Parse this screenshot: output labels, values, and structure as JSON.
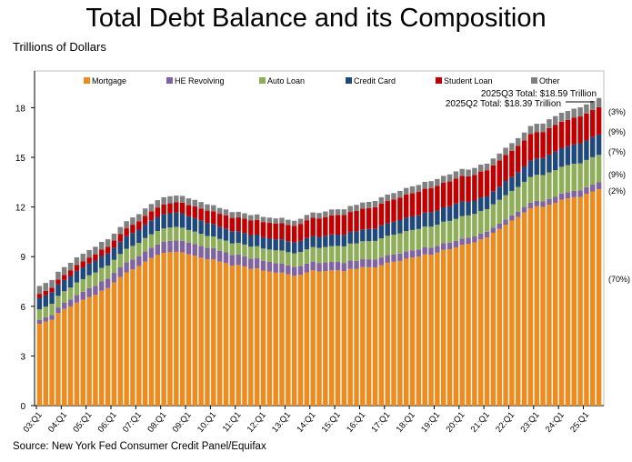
{
  "title": "Total Debt Balance and its Composition",
  "source": "Source: New York Fed Consumer Credit Panel/Equifax",
  "chart_data": {
    "type": "bar",
    "stacked": true,
    "title": "Total Debt Balance and its Composition",
    "ylabel": "Trillions of Dollars",
    "xlabel": "",
    "ylim": [
      0,
      20
    ],
    "yticks": [
      0,
      3,
      6,
      9,
      12,
      15,
      18
    ],
    "grid": false,
    "legend_position": "top",
    "start_year": 2003,
    "xtick_labels": [
      "03:Q1",
      "04:Q1",
      "05:Q1",
      "06:Q1",
      "07:Q1",
      "08:Q1",
      "09:Q1",
      "10:Q1",
      "11:Q1",
      "12:Q1",
      "13:Q1",
      "14:Q1",
      "15:Q1",
      "16:Q1",
      "17:Q1",
      "18:Q1",
      "19:Q1",
      "20:Q1",
      "21:Q1",
      "22:Q1",
      "23:Q1",
      "24:Q1",
      "25:Q1"
    ],
    "annotations": [
      "2025Q3 Total: $18.59 Trillion",
      "2025Q2 Total: $18.39 Trillion"
    ],
    "series": [
      {
        "name": "Mortgage",
        "color": "#ED8B1F",
        "share": "(70%)",
        "values": [
          4.94,
          5.08,
          5.18,
          5.6,
          5.84,
          5.99,
          6.22,
          6.39,
          6.56,
          6.69,
          6.94,
          7.1,
          7.44,
          7.76,
          8.05,
          8.23,
          8.43,
          8.7,
          8.91,
          9.1,
          9.23,
          9.27,
          9.29,
          9.26,
          9.14,
          9.06,
          8.94,
          8.84,
          8.83,
          8.7,
          8.61,
          8.45,
          8.5,
          8.4,
          8.27,
          8.29,
          8.16,
          8.1,
          8.03,
          8.03,
          7.93,
          7.84,
          7.9,
          8.05,
          8.17,
          8.1,
          8.13,
          8.17,
          8.17,
          8.12,
          8.26,
          8.25,
          8.37,
          8.36,
          8.35,
          8.48,
          8.63,
          8.69,
          8.74,
          8.88,
          8.94,
          9.0,
          9.14,
          9.12,
          9.24,
          9.41,
          9.44,
          9.56,
          9.71,
          9.78,
          9.86,
          10.04,
          10.16,
          10.44,
          10.67,
          10.93,
          11.18,
          11.39,
          11.67,
          11.92,
          12.04,
          12.01,
          12.14,
          12.25,
          12.44,
          12.52,
          12.59,
          12.61,
          12.8,
          12.94,
          13.07
        ]
      },
      {
        "name": "HE Revolving",
        "color": "#8064A2",
        "share": "(2%)",
        "values": [
          0.24,
          0.26,
          0.29,
          0.33,
          0.37,
          0.42,
          0.46,
          0.49,
          0.53,
          0.55,
          0.56,
          0.57,
          0.58,
          0.59,
          0.6,
          0.6,
          0.6,
          0.61,
          0.62,
          0.63,
          0.66,
          0.68,
          0.69,
          0.7,
          0.71,
          0.71,
          0.7,
          0.69,
          0.68,
          0.66,
          0.65,
          0.64,
          0.63,
          0.62,
          0.61,
          0.61,
          0.59,
          0.58,
          0.58,
          0.56,
          0.55,
          0.55,
          0.54,
          0.53,
          0.53,
          0.52,
          0.52,
          0.51,
          0.51,
          0.5,
          0.5,
          0.49,
          0.49,
          0.48,
          0.47,
          0.47,
          0.46,
          0.45,
          0.45,
          0.44,
          0.44,
          0.43,
          0.42,
          0.42,
          0.41,
          0.4,
          0.4,
          0.39,
          0.39,
          0.37,
          0.36,
          0.35,
          0.34,
          0.32,
          0.32,
          0.32,
          0.32,
          0.32,
          0.33,
          0.34,
          0.34,
          0.34,
          0.35,
          0.36,
          0.37,
          0.38,
          0.38,
          0.39,
          0.4,
          0.41,
          0.42
        ]
      },
      {
        "name": "Auto Loan",
        "color": "#8FAE5A",
        "share": "(9%)",
        "values": [
          0.64,
          0.64,
          0.68,
          0.7,
          0.7,
          0.72,
          0.76,
          0.76,
          0.78,
          0.8,
          0.82,
          0.79,
          0.79,
          0.81,
          0.82,
          0.82,
          0.8,
          0.81,
          0.82,
          0.82,
          0.81,
          0.81,
          0.82,
          0.79,
          0.76,
          0.74,
          0.74,
          0.72,
          0.71,
          0.71,
          0.71,
          0.71,
          0.7,
          0.71,
          0.72,
          0.73,
          0.74,
          0.75,
          0.77,
          0.78,
          0.79,
          0.81,
          0.84,
          0.86,
          0.88,
          0.9,
          0.93,
          0.96,
          0.97,
          1.0,
          1.03,
          1.06,
          1.07,
          1.1,
          1.13,
          1.16,
          1.17,
          1.19,
          1.21,
          1.22,
          1.23,
          1.24,
          1.26,
          1.27,
          1.28,
          1.3,
          1.32,
          1.33,
          1.35,
          1.34,
          1.36,
          1.37,
          1.37,
          1.4,
          1.44,
          1.46,
          1.47,
          1.5,
          1.52,
          1.55,
          1.56,
          1.58,
          1.6,
          1.61,
          1.62,
          1.63,
          1.64,
          1.64,
          1.64,
          1.66,
          1.66
        ]
      },
      {
        "name": "Credit Card",
        "color": "#1F497D",
        "share": "(7%)",
        "values": [
          0.69,
          0.69,
          0.7,
          0.7,
          0.68,
          0.7,
          0.7,
          0.71,
          0.71,
          0.72,
          0.72,
          0.73,
          0.73,
          0.74,
          0.76,
          0.78,
          0.8,
          0.82,
          0.84,
          0.85,
          0.86,
          0.86,
          0.87,
          0.87,
          0.84,
          0.83,
          0.81,
          0.79,
          0.76,
          0.74,
          0.73,
          0.73,
          0.7,
          0.7,
          0.7,
          0.7,
          0.68,
          0.68,
          0.67,
          0.68,
          0.66,
          0.67,
          0.67,
          0.68,
          0.66,
          0.67,
          0.68,
          0.7,
          0.68,
          0.7,
          0.71,
          0.73,
          0.71,
          0.73,
          0.75,
          0.78,
          0.76,
          0.78,
          0.81,
          0.83,
          0.82,
          0.83,
          0.84,
          0.87,
          0.85,
          0.87,
          0.88,
          0.93,
          0.89,
          0.82,
          0.81,
          0.82,
          0.77,
          0.79,
          0.8,
          0.86,
          0.84,
          0.89,
          0.93,
          0.99,
          0.99,
          1.03,
          1.08,
          1.13,
          1.12,
          1.14,
          1.17,
          1.21,
          1.18,
          1.21,
          1.23
        ]
      },
      {
        "name": "Student Loan",
        "color": "#C00000",
        "share": "(9%)",
        "values": [
          0.24,
          0.26,
          0.27,
          0.29,
          0.31,
          0.33,
          0.35,
          0.36,
          0.37,
          0.38,
          0.39,
          0.4,
          0.43,
          0.46,
          0.48,
          0.5,
          0.51,
          0.53,
          0.55,
          0.57,
          0.59,
          0.6,
          0.61,
          0.64,
          0.66,
          0.69,
          0.72,
          0.74,
          0.76,
          0.78,
          0.8,
          0.81,
          0.84,
          0.86,
          0.88,
          0.89,
          0.92,
          0.93,
          0.94,
          0.97,
          0.99,
          0.99,
          1.03,
          1.08,
          1.11,
          1.12,
          1.13,
          1.16,
          1.19,
          1.19,
          1.2,
          1.23,
          1.26,
          1.26,
          1.28,
          1.31,
          1.34,
          1.34,
          1.36,
          1.38,
          1.41,
          1.41,
          1.44,
          1.46,
          1.49,
          1.48,
          1.5,
          1.51,
          1.54,
          1.54,
          1.55,
          1.56,
          1.58,
          1.57,
          1.58,
          1.58,
          1.59,
          1.59,
          1.57,
          1.6,
          1.6,
          1.57,
          1.6,
          1.6,
          1.6,
          1.59,
          1.61,
          1.62,
          1.63,
          1.64,
          1.65
        ]
      },
      {
        "name": "Other",
        "color": "#808080",
        "share": "(3%)",
        "values": [
          0.48,
          0.48,
          0.47,
          0.47,
          0.47,
          0.47,
          0.47,
          0.47,
          0.45,
          0.46,
          0.46,
          0.46,
          0.42,
          0.43,
          0.43,
          0.44,
          0.43,
          0.44,
          0.44,
          0.44,
          0.44,
          0.43,
          0.41,
          0.41,
          0.41,
          0.4,
          0.39,
          0.38,
          0.37,
          0.35,
          0.35,
          0.35,
          0.34,
          0.33,
          0.33,
          0.33,
          0.31,
          0.32,
          0.32,
          0.33,
          0.31,
          0.31,
          0.31,
          0.32,
          0.32,
          0.33,
          0.34,
          0.35,
          0.34,
          0.35,
          0.36,
          0.37,
          0.37,
          0.38,
          0.38,
          0.39,
          0.39,
          0.39,
          0.4,
          0.4,
          0.41,
          0.42,
          0.42,
          0.42,
          0.42,
          0.42,
          0.43,
          0.43,
          0.42,
          0.41,
          0.42,
          0.42,
          0.4,
          0.41,
          0.42,
          0.43,
          0.46,
          0.47,
          0.48,
          0.49,
          0.5,
          0.51,
          0.53,
          0.54,
          0.54,
          0.54,
          0.55,
          0.55,
          0.55,
          0.55,
          0.55
        ]
      }
    ]
  }
}
